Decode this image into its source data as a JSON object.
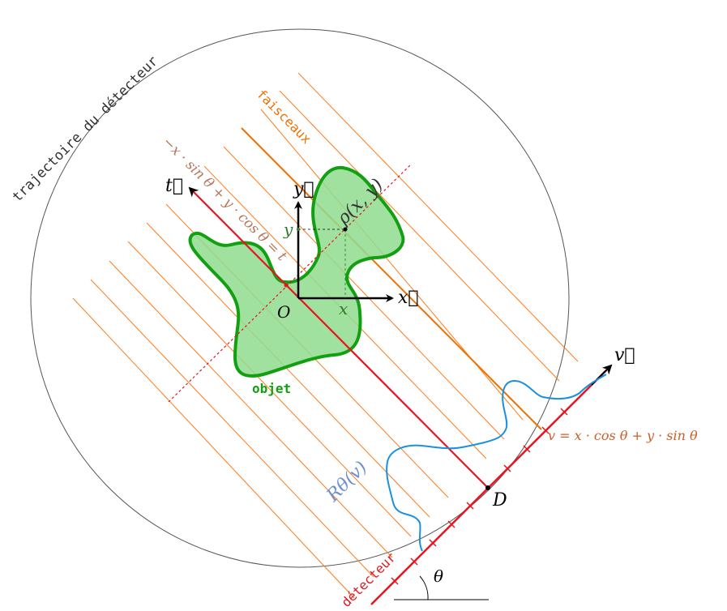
{
  "labels": {
    "trajectory": "trajectoire du détecteur",
    "beams": "faisceaux",
    "object": "objet",
    "detector": "détecteur",
    "t_axis": "t⃗",
    "y_axis": "y⃗",
    "x_axis": "x⃗",
    "v_axis": "v⃗",
    "origin": "O",
    "x_coord": "x",
    "y_coord": "y",
    "rho": "ρ(x, y)",
    "line_eq": "−x · sin θ + y · cos θ = t",
    "v_eq": "v = x · cos θ + y · sin θ",
    "projection": "Rθ(v)",
    "point_d": "D",
    "angle": "θ"
  },
  "colors": {
    "circle": "#555555",
    "beam": "#ff7a1a",
    "beam_main": "#f07000",
    "red": "#e8141e",
    "object_fill": "#8fdc8f",
    "object_stroke": "#12a012",
    "curve": "#1a90e0",
    "axis": "#000000",
    "eq_brown": "#b5785a",
    "eq_orange": "#c8602a",
    "proj_blue": "#6f8fcf",
    "coord_green": "#2e7d2e"
  }
}
